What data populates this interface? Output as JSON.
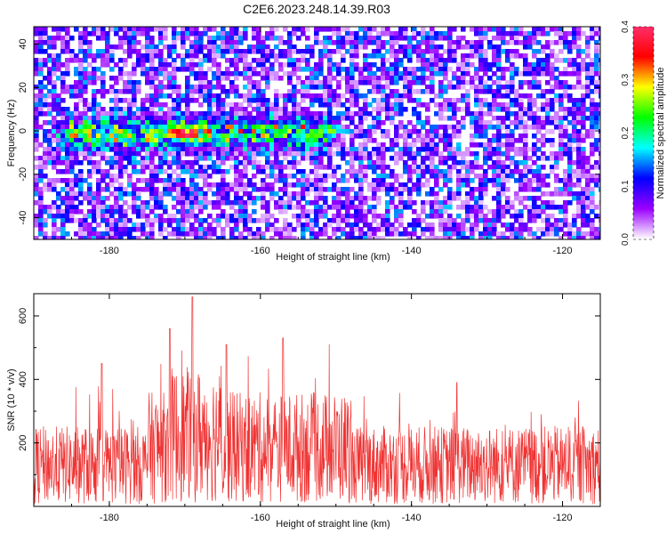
{
  "figure": {
    "title": "C2E6.2023.248.14.39.R03"
  },
  "chart_data": [
    {
      "type": "heatmap",
      "xlabel": "Height of straight line (km)",
      "ylabel": "Frequency (Hz)",
      "xlim": [
        -190,
        -115
      ],
      "ylim": [
        -50,
        48
      ],
      "x_ticks": [
        -180,
        -160,
        -140,
        -120
      ],
      "y_ticks": [
        -40,
        -20,
        0,
        20,
        40
      ],
      "colorbar": {
        "label": "Normalized spectral amplitude",
        "range": [
          0,
          0.4
        ],
        "ticks": [
          0.0,
          0.1,
          0.2,
          0.3,
          0.4
        ],
        "colors": [
          "#ffffff",
          "#9a00ff",
          "#0000ff",
          "#00ffff",
          "#00ff00",
          "#ffff00",
          "#ff0000",
          "#ff2f6a"
        ]
      },
      "dominant_band": {
        "frequency_hz": 0,
        "height_km": [
          -188,
          -149
        ],
        "peak_height_km": -170.5,
        "peak_amplitude": 0.38
      }
    },
    {
      "type": "line",
      "xlabel": "Height of straight line (km)",
      "ylabel": "SNR (10 * v/v)",
      "xlim": [
        -190,
        -115
      ],
      "ylim": [
        0,
        670
      ],
      "x_ticks": [
        -180,
        -160,
        -140,
        -120
      ],
      "y_ticks": [
        200,
        400,
        600
      ],
      "series": [
        {
          "color": "#ef3333",
          "baseline_snr": 130,
          "peaks": [
            {
              "x": -169,
              "y": 660
            },
            {
              "x": -172,
              "y": 560
            },
            {
              "x": -164.5,
              "y": 510
            },
            {
              "x": -157,
              "y": 530
            },
            {
              "x": -181,
              "y": 450
            },
            {
              "x": -134,
              "y": 390
            }
          ]
        }
      ]
    }
  ]
}
